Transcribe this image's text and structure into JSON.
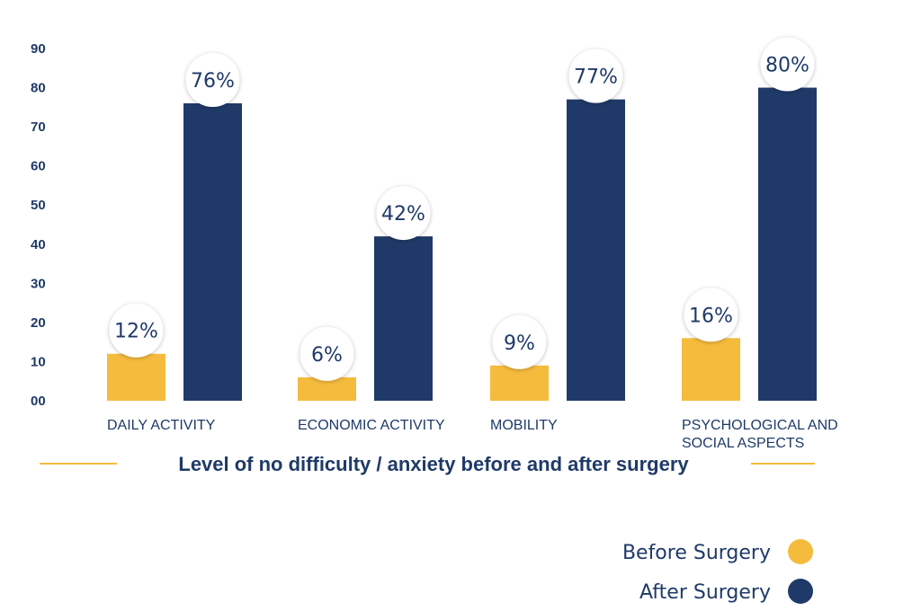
{
  "chart_data": {
    "type": "bar",
    "title": "Level of no difficulty / anxiety before and after surgery",
    "xlabel": "",
    "ylabel": "",
    "ylim": [
      0,
      90
    ],
    "yticks": [
      "00",
      "10",
      "20",
      "30",
      "40",
      "50",
      "60",
      "70",
      "80",
      "90"
    ],
    "grid": false,
    "legend_position": "bottom-right",
    "categories": [
      [
        "DAILY ACTIVITY"
      ],
      [
        "ECONOMIC ACTIVITY"
      ],
      [
        "MOBILITY"
      ],
      [
        "PSYCHOLOGICAL AND",
        "SOCIAL ASPECTS"
      ]
    ],
    "series": [
      {
        "name": "Before Surgery",
        "color": "#f5bb3d",
        "values": [
          12,
          6,
          9,
          16
        ],
        "labels": [
          "12%",
          "6%",
          "9%",
          "16%"
        ]
      },
      {
        "name": "After Surgery",
        "color": "#1f3a68",
        "values": [
          76,
          42,
          77,
          80
        ],
        "labels": [
          "76%",
          "42%",
          "77%",
          "80%"
        ]
      }
    ]
  }
}
